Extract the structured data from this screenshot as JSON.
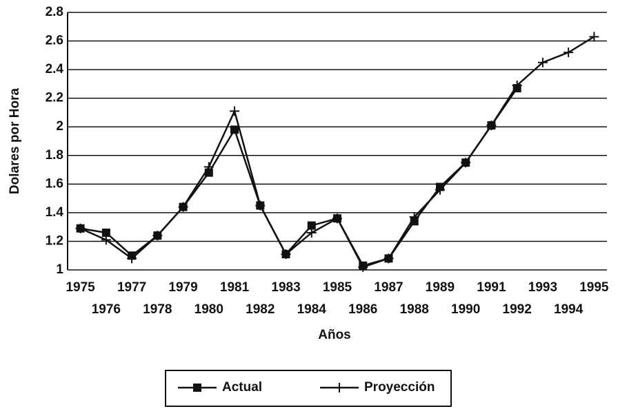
{
  "chart_data": {
    "type": "line",
    "xlabel": "Años",
    "ylabel": "Dolares por Hora",
    "categories": [
      "1975",
      "1976",
      "1977",
      "1978",
      "1979",
      "1980",
      "1981",
      "1982",
      "1983",
      "1984",
      "1985",
      "1986",
      "1987",
      "1988",
      "1989",
      "1990",
      "1991",
      "1992",
      "1993",
      "1994",
      "1995"
    ],
    "series": [
      {
        "name": "Actual",
        "color": "#111111",
        "marker": "square",
        "values": [
          1.29,
          1.26,
          1.1,
          1.24,
          1.44,
          1.68,
          1.98,
          1.45,
          1.11,
          1.31,
          1.36,
          1.03,
          1.08,
          1.34,
          1.58,
          1.75,
          2.01,
          2.27,
          null,
          null,
          null
        ]
      },
      {
        "name": "Proyección",
        "color": "#111111",
        "marker": "plus",
        "values": [
          1.29,
          1.21,
          1.08,
          1.24,
          1.44,
          1.72,
          2.11,
          1.45,
          1.11,
          1.26,
          1.36,
          1.02,
          1.08,
          1.37,
          1.56,
          1.75,
          2.01,
          2.29,
          2.45,
          2.52,
          2.63
        ]
      }
    ],
    "ylim": [
      1,
      2.8
    ],
    "yticks": [
      1,
      1.2,
      1.4,
      1.6,
      1.8,
      2,
      2.2,
      2.4,
      2.6,
      2.8
    ],
    "grid": true
  }
}
